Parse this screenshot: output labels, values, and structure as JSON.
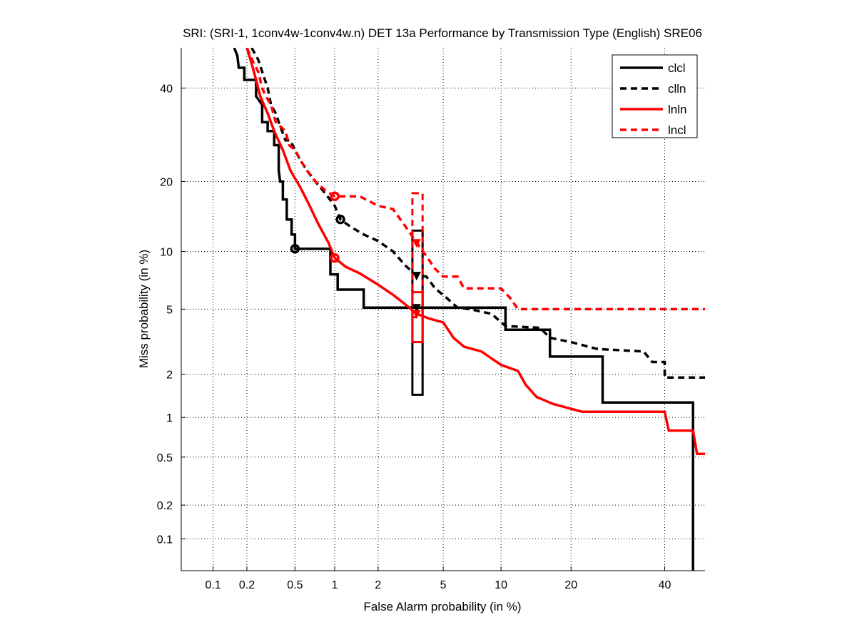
{
  "chart_data": {
    "type": "line",
    "title": "SRI: (SRI-1, 1conv4w-1conv4w.n) DET 13a Performance by Transmission Type (English) SRE06",
    "xlabel": "False Alarm probability (in %)",
    "ylabel": "Miss probability (in %)",
    "xscale": "normal-deviate",
    "yscale": "normal-deviate",
    "xlim": [
      0.05,
      50
    ],
    "ylim": [
      0.05,
      50
    ],
    "grid": true,
    "legend_position": "top-right",
    "xticks": [
      0.1,
      0.2,
      0.5,
      1,
      2,
      5,
      10,
      20,
      40
    ],
    "xtick_labels": [
      "0.1",
      "0.2",
      "0.5",
      "1",
      "2",
      "5",
      "10",
      "20",
      "40"
    ],
    "yticks": [
      0.1,
      0.2,
      0.5,
      1,
      2,
      5,
      10,
      20,
      40
    ],
    "ytick_labels": [
      "0.1",
      "0.2",
      "0.5",
      "1",
      "2",
      "5",
      "10",
      "20",
      "40"
    ],
    "series": [
      {
        "name": "clcl",
        "color": "#000000",
        "dash": "solid",
        "points": [
          [
            0.155,
            50
          ],
          [
            0.165,
            48
          ],
          [
            0.17,
            45
          ],
          [
            0.19,
            45
          ],
          [
            0.19,
            42
          ],
          [
            0.24,
            42
          ],
          [
            0.24,
            38
          ],
          [
            0.27,
            36
          ],
          [
            0.27,
            32
          ],
          [
            0.3,
            32
          ],
          [
            0.3,
            30
          ],
          [
            0.34,
            30
          ],
          [
            0.34,
            27
          ],
          [
            0.37,
            27
          ],
          [
            0.37,
            22
          ],
          [
            0.38,
            20
          ],
          [
            0.4,
            20
          ],
          [
            0.4,
            17
          ],
          [
            0.43,
            17
          ],
          [
            0.43,
            14
          ],
          [
            0.47,
            14
          ],
          [
            0.47,
            12
          ],
          [
            0.5,
            12
          ],
          [
            0.5,
            10.3
          ],
          [
            0.93,
            10.3
          ],
          [
            0.93,
            7.7
          ],
          [
            1.05,
            7.7
          ],
          [
            1.05,
            6.4
          ],
          [
            1.6,
            6.4
          ],
          [
            1.6,
            5.1
          ],
          [
            10.5,
            5.1
          ],
          [
            10.5,
            3.8
          ],
          [
            16.5,
            3.8
          ],
          [
            16.5,
            2.6
          ],
          [
            26,
            2.6
          ],
          [
            26,
            1.28
          ],
          [
            47,
            1.28
          ],
          [
            47,
            0.05
          ]
        ],
        "markers": [
          [
            0.5,
            10.3
          ],
          [
            3.5,
            7.6
          ],
          [
            3.5,
            5.1
          ]
        ],
        "confidence_box": {
          "fa": [
            3.3,
            3.8
          ],
          "miss": [
            1.45,
            12.5
          ]
        }
      },
      {
        "name": "clln",
        "color": "#000000",
        "dash": "dashed",
        "points": [
          [
            0.22,
            50
          ],
          [
            0.25,
            47
          ],
          [
            0.27,
            44
          ],
          [
            0.3,
            40
          ],
          [
            0.32,
            36
          ],
          [
            0.35,
            34
          ],
          [
            0.37,
            32
          ],
          [
            0.42,
            28
          ],
          [
            0.46,
            28
          ],
          [
            0.5,
            26
          ],
          [
            0.55,
            24
          ],
          [
            0.62,
            22
          ],
          [
            0.72,
            20
          ],
          [
            0.85,
            18
          ],
          [
            1.0,
            16
          ],
          [
            1.1,
            14
          ],
          [
            1.3,
            13
          ],
          [
            1.6,
            12
          ],
          [
            2.0,
            11.2
          ],
          [
            2.5,
            10
          ],
          [
            3.0,
            8.5
          ],
          [
            3.5,
            7.6
          ],
          [
            4.0,
            7.5
          ],
          [
            4.5,
            6.5
          ],
          [
            5.2,
            5.8
          ],
          [
            6.0,
            5.1
          ],
          [
            7.0,
            5.0
          ],
          [
            9.0,
            4.7
          ],
          [
            10.5,
            4.0
          ],
          [
            15.0,
            3.9
          ],
          [
            16.5,
            3.4
          ],
          [
            20.0,
            3.2
          ],
          [
            25.0,
            2.9
          ],
          [
            35.0,
            2.8
          ],
          [
            37.0,
            2.4
          ],
          [
            40.0,
            2.4
          ],
          [
            40.0,
            1.9
          ],
          [
            50,
            1.9
          ]
        ],
        "markers": [
          [
            1.1,
            14
          ],
          [
            3.5,
            7.6
          ]
        ]
      },
      {
        "name": "lnln",
        "color": "#ff0000",
        "dash": "solid",
        "points": [
          [
            0.2,
            50
          ],
          [
            0.22,
            46
          ],
          [
            0.24,
            42
          ],
          [
            0.26,
            38
          ],
          [
            0.3,
            34
          ],
          [
            0.34,
            30
          ],
          [
            0.4,
            26
          ],
          [
            0.46,
            22
          ],
          [
            0.55,
            19
          ],
          [
            0.65,
            16
          ],
          [
            0.75,
            13.5
          ],
          [
            0.9,
            11
          ],
          [
            1.0,
            9.3
          ],
          [
            1.2,
            8.4
          ],
          [
            1.5,
            7.8
          ],
          [
            2.0,
            6.8
          ],
          [
            2.5,
            6.0
          ],
          [
            3.0,
            5.3
          ],
          [
            3.5,
            4.7
          ],
          [
            4.2,
            4.4
          ],
          [
            5.0,
            4.2
          ],
          [
            5.7,
            3.4
          ],
          [
            6.5,
            3.0
          ],
          [
            8.0,
            2.8
          ],
          [
            10.0,
            2.3
          ],
          [
            12.0,
            2.1
          ],
          [
            13.0,
            1.7
          ],
          [
            14.5,
            1.4
          ],
          [
            17.0,
            1.25
          ],
          [
            22.0,
            1.1
          ],
          [
            40.0,
            1.1
          ],
          [
            41.0,
            0.8
          ],
          [
            47.0,
            0.8
          ],
          [
            48.0,
            0.53
          ],
          [
            50,
            0.53
          ]
        ],
        "markers": [
          [
            1.0,
            9.3
          ],
          [
            3.5,
            4.7
          ]
        ],
        "confidence_box": {
          "fa": [
            3.3,
            3.8
          ],
          "miss": [
            3.2,
            6.2
          ]
        }
      },
      {
        "name": "lncl",
        "color": "#ff0000",
        "dash": "dashed",
        "points": [
          [
            0.2,
            50
          ],
          [
            0.23,
            46
          ],
          [
            0.25,
            44
          ],
          [
            0.27,
            40
          ],
          [
            0.29,
            38
          ],
          [
            0.32,
            36
          ],
          [
            0.35,
            32
          ],
          [
            0.42,
            30
          ],
          [
            0.45,
            27
          ],
          [
            0.5,
            26
          ],
          [
            0.55,
            24
          ],
          [
            0.62,
            22
          ],
          [
            0.72,
            20
          ],
          [
            0.85,
            18.5
          ],
          [
            1.0,
            17.5
          ],
          [
            1.5,
            17.5
          ],
          [
            2.0,
            16
          ],
          [
            2.5,
            15.5
          ],
          [
            3.0,
            13
          ],
          [
            3.5,
            11
          ],
          [
            4.0,
            9.5
          ],
          [
            4.5,
            8.2
          ],
          [
            5.0,
            7.5
          ],
          [
            6.0,
            7.5
          ],
          [
            6.5,
            6.5
          ],
          [
            10.0,
            6.5
          ],
          [
            11.0,
            5.8
          ],
          [
            12.0,
            5.0
          ],
          [
            50,
            5.0
          ]
        ],
        "markers": [
          [
            1.0,
            17.5
          ],
          [
            3.5,
            11
          ]
        ],
        "confidence_box": {
          "fa": [
            3.3,
            3.8
          ],
          "miss": [
            4.5,
            18
          ]
        }
      }
    ]
  }
}
